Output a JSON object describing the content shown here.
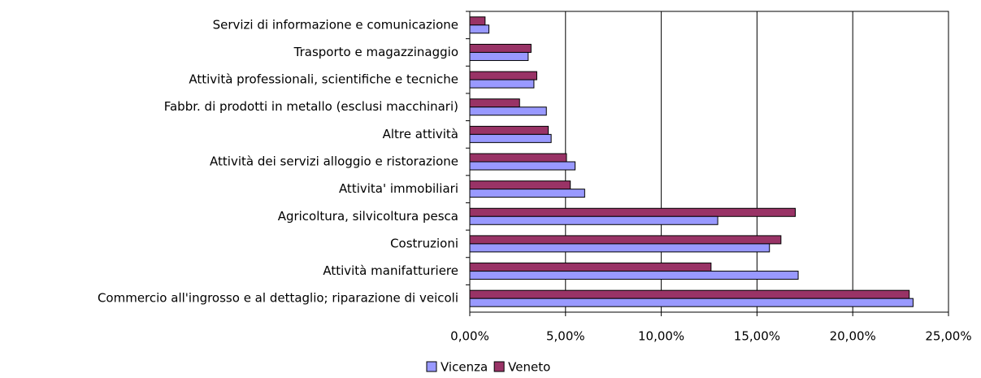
{
  "chart_data": {
    "type": "hbar",
    "categories": [
      "Servizi di informazione e comunicazione",
      "Trasporto e magazzinaggio",
      "Attività professionali, scientifiche e tecniche",
      "Fabbr. di prodotti in metallo (esclusi macchinari)",
      "Altre attività",
      "Attività dei servizi alloggio e ristorazione",
      "Attivita' immobiliari",
      "Agricoltura, silvicoltura pesca",
      "Costruzioni",
      "Attività manifatturiere",
      "Commercio all'ingrosso e al dettaglio; riparazione di veicoli"
    ],
    "series": [
      {
        "name": "Vicenza",
        "color": "#9999ff",
        "values": [
          1.0,
          3.05,
          3.35,
          4.0,
          4.25,
          5.5,
          6.0,
          12.95,
          15.65,
          17.15,
          23.15
        ]
      },
      {
        "name": "Veneto",
        "color": "#993366",
        "values": [
          0.8,
          3.2,
          3.5,
          2.6,
          4.1,
          5.05,
          5.25,
          17.0,
          16.25,
          12.6,
          22.95
        ]
      }
    ],
    "xlim": [
      0,
      25
    ],
    "xticks": [
      {
        "value": 0,
        "label": "0,00%"
      },
      {
        "value": 5,
        "label": "5,00%"
      },
      {
        "value": 10,
        "label": "10,00%"
      },
      {
        "value": 15,
        "label": "15,00%"
      },
      {
        "value": 20,
        "label": "20,00%"
      },
      {
        "value": 25,
        "label": "25,00%"
      }
    ],
    "grid": true,
    "legend": "bottom"
  }
}
